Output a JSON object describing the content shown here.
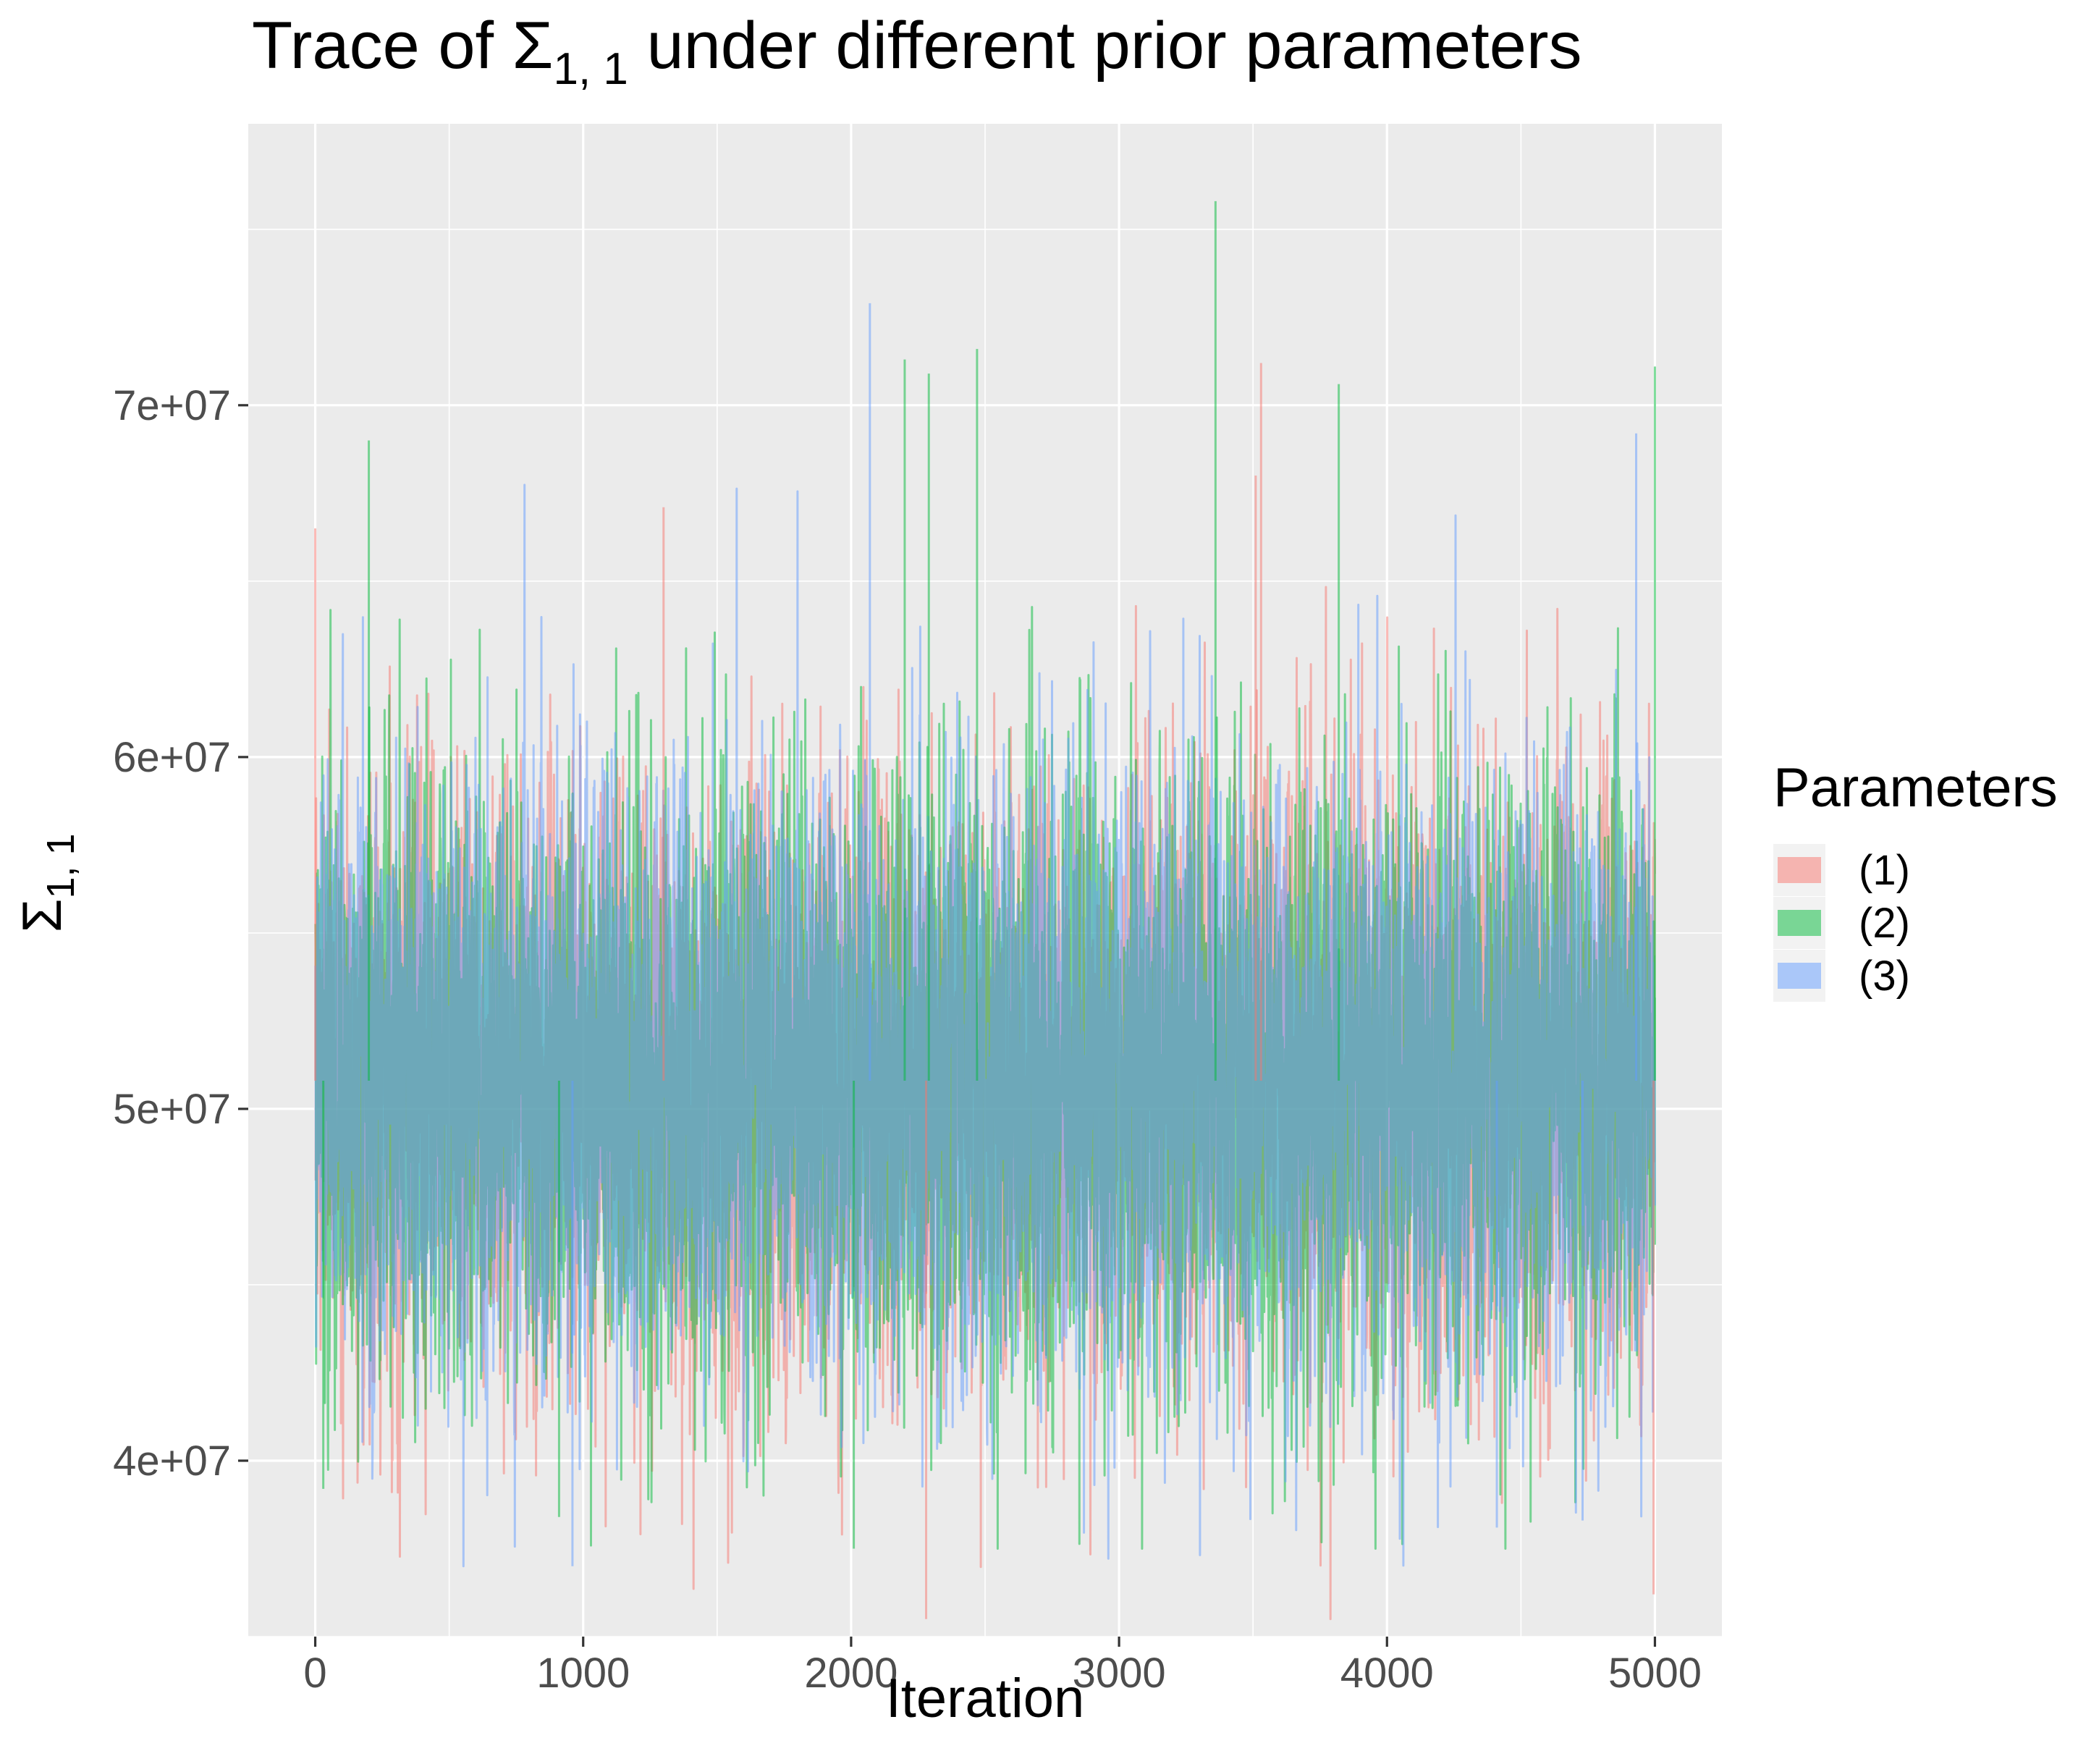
{
  "chart_data": {
    "type": "line",
    "title": "Trace of Σ1, 1 under different prior parameters",
    "title_parts": {
      "prefix": "Trace of Σ",
      "subscript": "1, 1",
      "suffix": " under different prior parameters"
    },
    "xlabel": "Iteration",
    "ylabel": "Σ1, 1",
    "ylabel_parts": {
      "base": "Σ",
      "subscript": "1, 1"
    },
    "xlim": [
      -250,
      5250
    ],
    "ylim": [
      35000000,
      78000000
    ],
    "x_ticks": [
      0,
      1000,
      2000,
      3000,
      4000,
      5000
    ],
    "x_tick_labels": [
      "0",
      "1000",
      "2000",
      "3000",
      "4000",
      "5000"
    ],
    "y_ticks": [
      40000000,
      50000000,
      60000000,
      70000000
    ],
    "y_tick_labels": [
      "4e+07",
      "5e+07",
      "6e+07",
      "7e+07"
    ],
    "grid": true,
    "legend": {
      "title": "Parameters",
      "position": "right"
    },
    "n_iterations": 5000,
    "series": [
      {
        "name": "(1)",
        "color": "#f8766d",
        "mean": 50800000,
        "sd": 4300000,
        "min": 35500000,
        "max": 71200000
      },
      {
        "name": "(2)",
        "color": "#00ba38",
        "mean": 50800000,
        "sd": 4300000,
        "min": 37500000,
        "max": 75800000
      },
      {
        "name": "(3)",
        "color": "#619cff",
        "mean": 50800000,
        "sd": 4300000,
        "min": 37000000,
        "max": 72900000
      }
    ],
    "series_extremes": [
      {
        "series": "(1)",
        "x": 2280,
        "y": 35500000
      },
      {
        "series": "(1)",
        "x": 3530,
        "y": 71200000
      },
      {
        "series": "(1)",
        "x": 4995,
        "y": 36200000
      },
      {
        "series": "(1)",
        "x": 3510,
        "y": 68000000
      },
      {
        "series": "(1)",
        "x": 1300,
        "y": 67100000
      },
      {
        "series": "(1)",
        "x": 0,
        "y": 66500000
      },
      {
        "series": "(2)",
        "x": 3360,
        "y": 75800000
      },
      {
        "series": "(2)",
        "x": 5000,
        "y": 71100000
      },
      {
        "series": "(2)",
        "x": 2200,
        "y": 71300000
      },
      {
        "series": "(2)",
        "x": 2290,
        "y": 70900000
      },
      {
        "series": "(2)",
        "x": 2470,
        "y": 71600000
      },
      {
        "series": "(2)",
        "x": 3820,
        "y": 70600000
      },
      {
        "series": "(2)",
        "x": 200,
        "y": 69000000
      },
      {
        "series": "(2)",
        "x": 2010,
        "y": 37500000
      },
      {
        "series": "(2)",
        "x": 910,
        "y": 38400000
      },
      {
        "series": "(2)",
        "x": 30,
        "y": 39200000
      },
      {
        "series": "(3)",
        "x": 2070,
        "y": 72900000
      },
      {
        "series": "(3)",
        "x": 4930,
        "y": 69200000
      },
      {
        "series": "(3)",
        "x": 960,
        "y": 37000000
      },
      {
        "series": "(3)",
        "x": 4410,
        "y": 38100000
      },
      {
        "series": "(3)",
        "x": 4730,
        "y": 38300000
      }
    ]
  }
}
